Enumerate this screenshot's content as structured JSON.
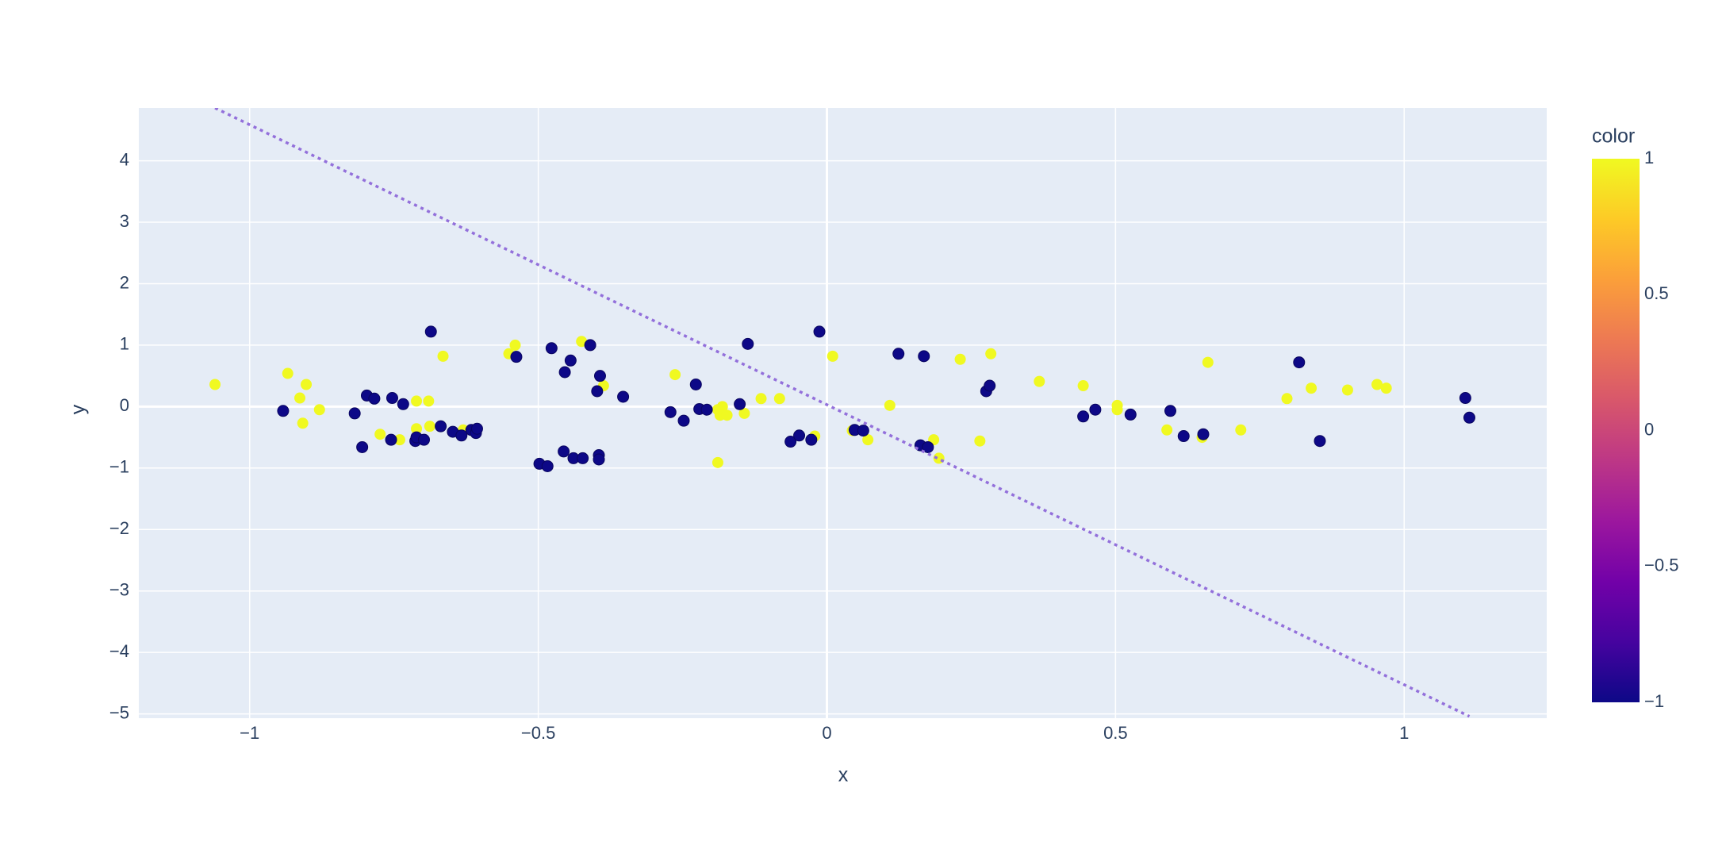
{
  "chart_data": {
    "type": "scatter",
    "x_label": "x",
    "y_label": "y",
    "xlim": [
      -1.192,
      1.247
    ],
    "ylim": [
      -5.07,
      4.86
    ],
    "xticks": [
      {
        "value": -1,
        "label": "−1"
      },
      {
        "value": -0.5,
        "label": "−0.5"
      },
      0,
      0.5,
      1
    ],
    "yticks": [
      {
        "value": -5,
        "label": "−5"
      },
      {
        "value": -4,
        "label": "−4"
      },
      {
        "value": -3,
        "label": "−3"
      },
      {
        "value": -2,
        "label": "−2"
      },
      {
        "value": -1,
        "label": "−1"
      },
      0,
      1,
      2,
      3,
      4
    ],
    "grid": true,
    "background": "#e5ecf6",
    "points": {
      "x": [
        -1.06,
        -0.934,
        -0.913,
        -0.902,
        -0.908,
        -0.879,
        -0.774,
        -0.711,
        -0.69,
        -0.711,
        -0.688,
        -0.74,
        -0.665,
        -0.63,
        -0.551,
        -0.54,
        -0.425,
        -0.387,
        -0.263,
        -0.189,
        -0.181,
        -0.185,
        -0.173,
        -0.143,
        -0.189,
        -0.114,
        -0.082,
        -0.021,
        0.01,
        0.044,
        0.071,
        0.109,
        0.185,
        0.194,
        0.231,
        0.265,
        0.284,
        0.368,
        0.444,
        0.503,
        0.503,
        0.589,
        0.65,
        0.66,
        0.717,
        0.797,
        0.839,
        0.902,
        0.953,
        0.969,
        -0.942,
        -0.818,
        -0.805,
        -0.797,
        -0.784,
        -0.753,
        -0.755,
        -0.734,
        -0.713,
        -0.711,
        -0.698,
        -0.686,
        -0.669,
        -0.648,
        -0.633,
        -0.616,
        -0.608,
        -0.606,
        -0.538,
        -0.498,
        -0.484,
        -0.477,
        -0.456,
        -0.454,
        -0.444,
        -0.439,
        -0.423,
        -0.41,
        -0.398,
        -0.393,
        -0.395,
        -0.395,
        -0.353,
        -0.271,
        -0.248,
        -0.227,
        -0.221,
        -0.208,
        -0.151,
        -0.137,
        -0.063,
        -0.048,
        -0.027,
        -0.013,
        0.048,
        0.063,
        0.124,
        0.162,
        0.168,
        0.175,
        0.276,
        0.282,
        0.444,
        0.465,
        0.526,
        0.595,
        0.618,
        0.652,
        0.818,
        0.854,
        1.106,
        1.113
      ],
      "y": [
        0.36,
        0.54,
        0.14,
        0.36,
        -0.27,
        -0.05,
        -0.45,
        0.09,
        0.09,
        -0.36,
        -0.32,
        -0.54,
        0.82,
        -0.38,
        0.86,
        1.0,
        1.06,
        0.34,
        0.52,
        -0.05,
        0.0,
        -0.14,
        -0.14,
        -0.11,
        -0.91,
        0.13,
        0.13,
        -0.48,
        0.82,
        -0.39,
        -0.54,
        0.02,
        -0.54,
        -0.84,
        0.77,
        -0.56,
        0.86,
        0.41,
        0.34,
        0.02,
        -0.05,
        -0.38,
        -0.5,
        0.72,
        -0.38,
        0.13,
        0.3,
        0.27,
        0.36,
        0.3,
        -0.07,
        -0.11,
        -0.66,
        0.18,
        0.13,
        0.14,
        -0.54,
        0.04,
        -0.56,
        -0.5,
        -0.54,
        1.22,
        -0.32,
        -0.41,
        -0.47,
        -0.38,
        -0.43,
        -0.36,
        0.81,
        -0.93,
        -0.97,
        0.95,
        -0.73,
        0.56,
        0.75,
        -0.84,
        -0.84,
        1.0,
        0.25,
        0.5,
        -0.79,
        -0.86,
        0.16,
        -0.09,
        -0.23,
        0.36,
        -0.04,
        -0.05,
        0.04,
        1.02,
        -0.57,
        -0.47,
        -0.54,
        1.22,
        -0.38,
        -0.39,
        0.86,
        -0.63,
        0.82,
        -0.66,
        0.25,
        0.34,
        -0.16,
        -0.05,
        -0.13,
        -0.07,
        -0.48,
        -0.45,
        0.72,
        -0.56,
        0.14,
        -0.18
      ],
      "color": [
        1,
        1,
        1,
        1,
        1,
        1,
        1,
        1,
        1,
        1,
        1,
        1,
        1,
        1,
        1,
        1,
        1,
        1,
        1,
        1,
        1,
        1,
        1,
        1,
        1,
        1,
        1,
        1,
        1,
        1,
        1,
        1,
        1,
        1,
        1,
        1,
        1,
        1,
        1,
        1,
        1,
        1,
        1,
        1,
        1,
        1,
        1,
        1,
        1,
        1,
        -1,
        -1,
        -1,
        -1,
        -1,
        -1,
        -1,
        -1,
        -1,
        -1,
        -1,
        -1,
        -1,
        -1,
        -1,
        -1,
        -1,
        -1,
        -1,
        -1,
        -1,
        -1,
        -1,
        -1,
        -1,
        -1,
        -1,
        -1,
        -1,
        -1,
        -1,
        -1,
        -1,
        -1,
        -1,
        -1,
        -1,
        -1,
        -1,
        -1,
        -1,
        -1,
        -1,
        -1,
        -1,
        -1,
        -1,
        -1,
        -1,
        -1,
        -1,
        -1,
        -1,
        -1,
        -1,
        -1,
        -1,
        -1,
        -1,
        -1,
        -1,
        -1
      ]
    },
    "line": {
      "x": [
        -1.06,
        1.113
      ],
      "y": [
        4.86,
        -5.04
      ],
      "color": "#9370db",
      "dash": "dot"
    },
    "colorbar": {
      "title": "color",
      "range": [
        -1,
        1
      ],
      "ticks": [
        {
          "value": -1,
          "label": "−1"
        },
        {
          "value": -0.5,
          "label": "−0.5"
        },
        0,
        0.5,
        1
      ],
      "colorscale": [
        "#0d0887",
        "#46039f",
        "#7201a8",
        "#9c179e",
        "#bd3786",
        "#d8576b",
        "#ed7953",
        "#fb9f3a",
        "#fdca26",
        "#f0f921"
      ]
    }
  }
}
